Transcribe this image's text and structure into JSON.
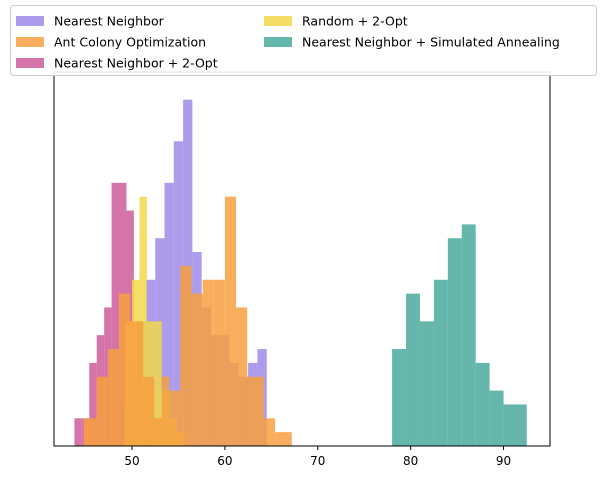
{
  "chart_data": {
    "type": "bar",
    "subtype": "histogram",
    "title": "",
    "xlabel": "",
    "ylabel": "",
    "xlim": [
      41.6,
      95.0
    ],
    "ylim": [
      0,
      27
    ],
    "xticks": [
      50,
      60,
      70,
      80,
      90
    ],
    "yaxis_visible": false,
    "grid": false,
    "legend": {
      "placement": "top, above plot",
      "columns": 2
    },
    "series": [
      {
        "name": "Nearest Neighbor",
        "color": "#9f8ae8",
        "bins": [
          [
            48.5,
            49.5,
            3
          ],
          [
            49.5,
            50.5,
            6
          ],
          [
            50.5,
            51.5,
            9
          ],
          [
            51.5,
            52.5,
            12
          ],
          [
            52.5,
            53.5,
            15
          ],
          [
            53.5,
            54.5,
            19
          ],
          [
            54.5,
            55.5,
            22
          ],
          [
            55.5,
            56.5,
            25
          ],
          [
            56.5,
            57.5,
            14
          ],
          [
            57.5,
            58.5,
            10
          ],
          [
            58.5,
            59.5,
            8
          ],
          [
            59.5,
            60.5,
            8
          ],
          [
            60.5,
            61.5,
            6
          ],
          [
            61.5,
            62.5,
            5
          ],
          [
            62.5,
            63.5,
            6
          ],
          [
            63.5,
            64.5,
            7
          ]
        ]
      },
      {
        "name": "Nearest Neighbor + 2-Opt",
        "color": "#cc5c99",
        "bins": [
          [
            43.8,
            44.6,
            2
          ],
          [
            44.6,
            45.4,
            2
          ],
          [
            45.4,
            46.2,
            6
          ],
          [
            46.2,
            47.0,
            8
          ],
          [
            47.0,
            47.8,
            10
          ],
          [
            47.8,
            48.6,
            19
          ],
          [
            48.6,
            49.4,
            19
          ],
          [
            49.4,
            50.2,
            17
          ],
          [
            50.2,
            51.0,
            5
          ],
          [
            51.0,
            51.8,
            3
          ],
          [
            51.8,
            52.6,
            2
          ]
        ]
      },
      {
        "name": "Random + 2-Opt",
        "color": "#f2d84a",
        "bins": [
          [
            49.2,
            50.0,
            9
          ],
          [
            50.0,
            50.8,
            12
          ],
          [
            50.8,
            51.6,
            18
          ],
          [
            51.6,
            52.4,
            9
          ],
          [
            52.4,
            53.2,
            9
          ],
          [
            53.2,
            54.0,
            4
          ],
          [
            54.0,
            54.8,
            2
          ],
          [
            54.8,
            55.6,
            1
          ]
        ]
      },
      {
        "name": "Ant Colony Optimization",
        "color": "#f7a040",
        "bins": [
          [
            44.8,
            46.2,
            2
          ],
          [
            46.2,
            47.4,
            5
          ],
          [
            47.4,
            48.6,
            7
          ],
          [
            48.6,
            49.8,
            11
          ],
          [
            49.8,
            51.2,
            9
          ],
          [
            51.2,
            52.4,
            5
          ],
          [
            52.4,
            53.2,
            2
          ],
          [
            53.2,
            54.0,
            5
          ],
          [
            54.0,
            55.2,
            4
          ],
          [
            55.2,
            56.4,
            13
          ],
          [
            56.4,
            57.6,
            11
          ],
          [
            57.6,
            58.8,
            12
          ],
          [
            58.8,
            60.0,
            12
          ],
          [
            60.0,
            61.2,
            18
          ],
          [
            61.2,
            62.4,
            10
          ],
          [
            62.4,
            63.2,
            5
          ],
          [
            63.2,
            64.2,
            5
          ],
          [
            64.2,
            65.4,
            2
          ],
          [
            65.4,
            67.2,
            1
          ]
        ]
      },
      {
        "name": "Nearest Neighbor + Simulated Annealing",
        "color": "#4aa99c",
        "bins": [
          [
            78.0,
            79.5,
            7
          ],
          [
            79.5,
            81.0,
            11
          ],
          [
            81.0,
            82.5,
            9
          ],
          [
            82.5,
            84.0,
            12
          ],
          [
            84.0,
            85.5,
            15
          ],
          [
            85.5,
            87.0,
            16
          ],
          [
            87.0,
            88.5,
            6
          ],
          [
            88.5,
            90.0,
            4
          ],
          [
            90.0,
            92.5,
            3
          ]
        ]
      }
    ]
  },
  "legend": {
    "items": [
      {
        "label": "Nearest Neighbor",
        "color": "#9f8ae8"
      },
      {
        "label": "Ant Colony Optimization",
        "color": "#f7a040"
      },
      {
        "label": "Nearest Neighbor + 2-Opt",
        "color": "#cc5c99"
      },
      {
        "label": "Random + 2-Opt",
        "color": "#f2d84a"
      },
      {
        "label": "Nearest Neighbor + Simulated Annealing",
        "color": "#4aa99c"
      }
    ]
  }
}
